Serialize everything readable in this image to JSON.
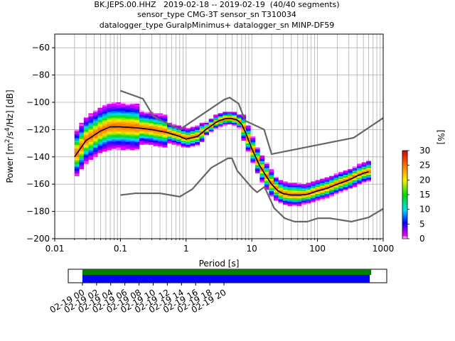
{
  "figure": {
    "title_lines": [
      "BK.JEPS.00.HHZ   2019-02-18 -- 2019-02-19  (40/40 segments)",
      "sensor_type CMG-3T sensor_sn T310034",
      "datalogger_type GuralpMinimus+ datalogger_sn MINP-DF59"
    ]
  },
  "chart_data": [
    {
      "type": "heatmap",
      "title": "BK.JEPS.00.HHZ   2019-02-18 -- 2019-02-19  (40/40 segments)",
      "xlabel": "Period [s]",
      "ylabel": "Power [m²/s⁴/Hz] [dB]",
      "ylabel_parts": {
        "pre": "Power [m",
        "sup1": "2",
        "mid": "/s",
        "sup2": "4",
        "post": "/Hz] [dB]"
      },
      "x_scale": "log",
      "xlim": [
        0.01,
        1000
      ],
      "ylim": [
        -200,
        -50
      ],
      "x_ticks": [
        0.01,
        0.1,
        1,
        10,
        100,
        1000
      ],
      "x_tick_labels": [
        "0.01",
        "0.1",
        "1",
        "10",
        "100",
        "1000"
      ],
      "y_ticks": [
        -200,
        -180,
        -160,
        -140,
        -120,
        -100,
        -80,
        -60
      ],
      "y_tick_labels": [
        "−200",
        "−180",
        "−160",
        "−140",
        "−120",
        "−100",
        "−80",
        "−60"
      ],
      "grid": true,
      "noise_model_high": {
        "x": [
          0.1,
          0.22,
          0.32,
          0.8,
          3.8,
          4.6,
          6.3,
          7.9,
          15.4,
          20,
          354.8,
          1000
        ],
        "y": [
          -91.5,
          -97.4,
          -110.5,
          -120,
          -98,
          -96.5,
          -101,
          -113.5,
          -120,
          -138,
          -126,
          -111.5
        ]
      },
      "noise_model_low": {
        "x": [
          0.1,
          0.17,
          0.4,
          0.8,
          1.24,
          2.4,
          4.3,
          5,
          6,
          10,
          12,
          15.6,
          21.9,
          31.6,
          45,
          70,
          101,
          154,
          328,
          600,
          1000
        ],
        "y": [
          -168,
          -166.7,
          -166.7,
          -169.2,
          -163.7,
          -148.1,
          -141.1,
          -141.1,
          -150.2,
          -162.6,
          -166,
          -162,
          -177.6,
          -185,
          -187.5,
          -187.5,
          -185,
          -185,
          -187.5,
          -184.4,
          -178
        ]
      },
      "mean_curve": {
        "x": [
          0.02,
          0.03,
          0.05,
          0.07,
          0.1,
          0.15,
          0.2,
          0.3,
          0.5,
          0.8,
          1.0,
          1.5,
          2,
          3,
          4,
          5,
          6,
          7,
          8,
          10,
          13,
          16,
          20,
          25,
          30,
          40,
          55,
          70,
          100,
          140,
          200,
          300,
          400,
          500,
          600
        ],
        "y": [
          -140,
          -128,
          -121,
          -118,
          -118,
          -118.5,
          -119,
          -120,
          -122,
          -125,
          -127,
          -125,
          -120,
          -114,
          -112,
          -112,
          -113,
          -116,
          -122,
          -134,
          -146,
          -153,
          -160,
          -165,
          -167,
          -168,
          -168,
          -167.5,
          -165,
          -163,
          -160,
          -157,
          -154,
          -152,
          -151
        ]
      },
      "colorbar": {
        "label": "[%]",
        "range": [
          0,
          30
        ],
        "ticks": [
          0,
          5,
          10,
          15,
          20,
          25,
          30
        ],
        "tick_labels": [
          "0",
          "5",
          "10",
          "15",
          "20",
          "25",
          "30"
        ]
      }
    },
    {
      "type": "bar",
      "description_role": "data coverage timeline",
      "x_tick_labels": [
        "02-19 00",
        "02-19 02",
        "02-19 04",
        "02-19 06",
        "02-19 08",
        "02-19 10",
        "02-19 12",
        "02-19 14",
        "02-19 16",
        "02-19 18",
        "02-19 20"
      ],
      "x_ticks_hours": [
        0,
        2,
        4,
        6,
        8,
        10,
        12,
        14,
        16,
        18,
        20
      ],
      "xlim_hours": [
        -2,
        43
      ],
      "coverage_hours": [
        0,
        40.8
      ],
      "processed_hours": [
        0,
        40.6
      ]
    }
  ],
  "colors": {
    "grid": "#b0b0b0",
    "noise_model": "#666666",
    "mean": "#000000",
    "coverage_top": "#008000",
    "coverage_bottom": "#0000ff"
  }
}
